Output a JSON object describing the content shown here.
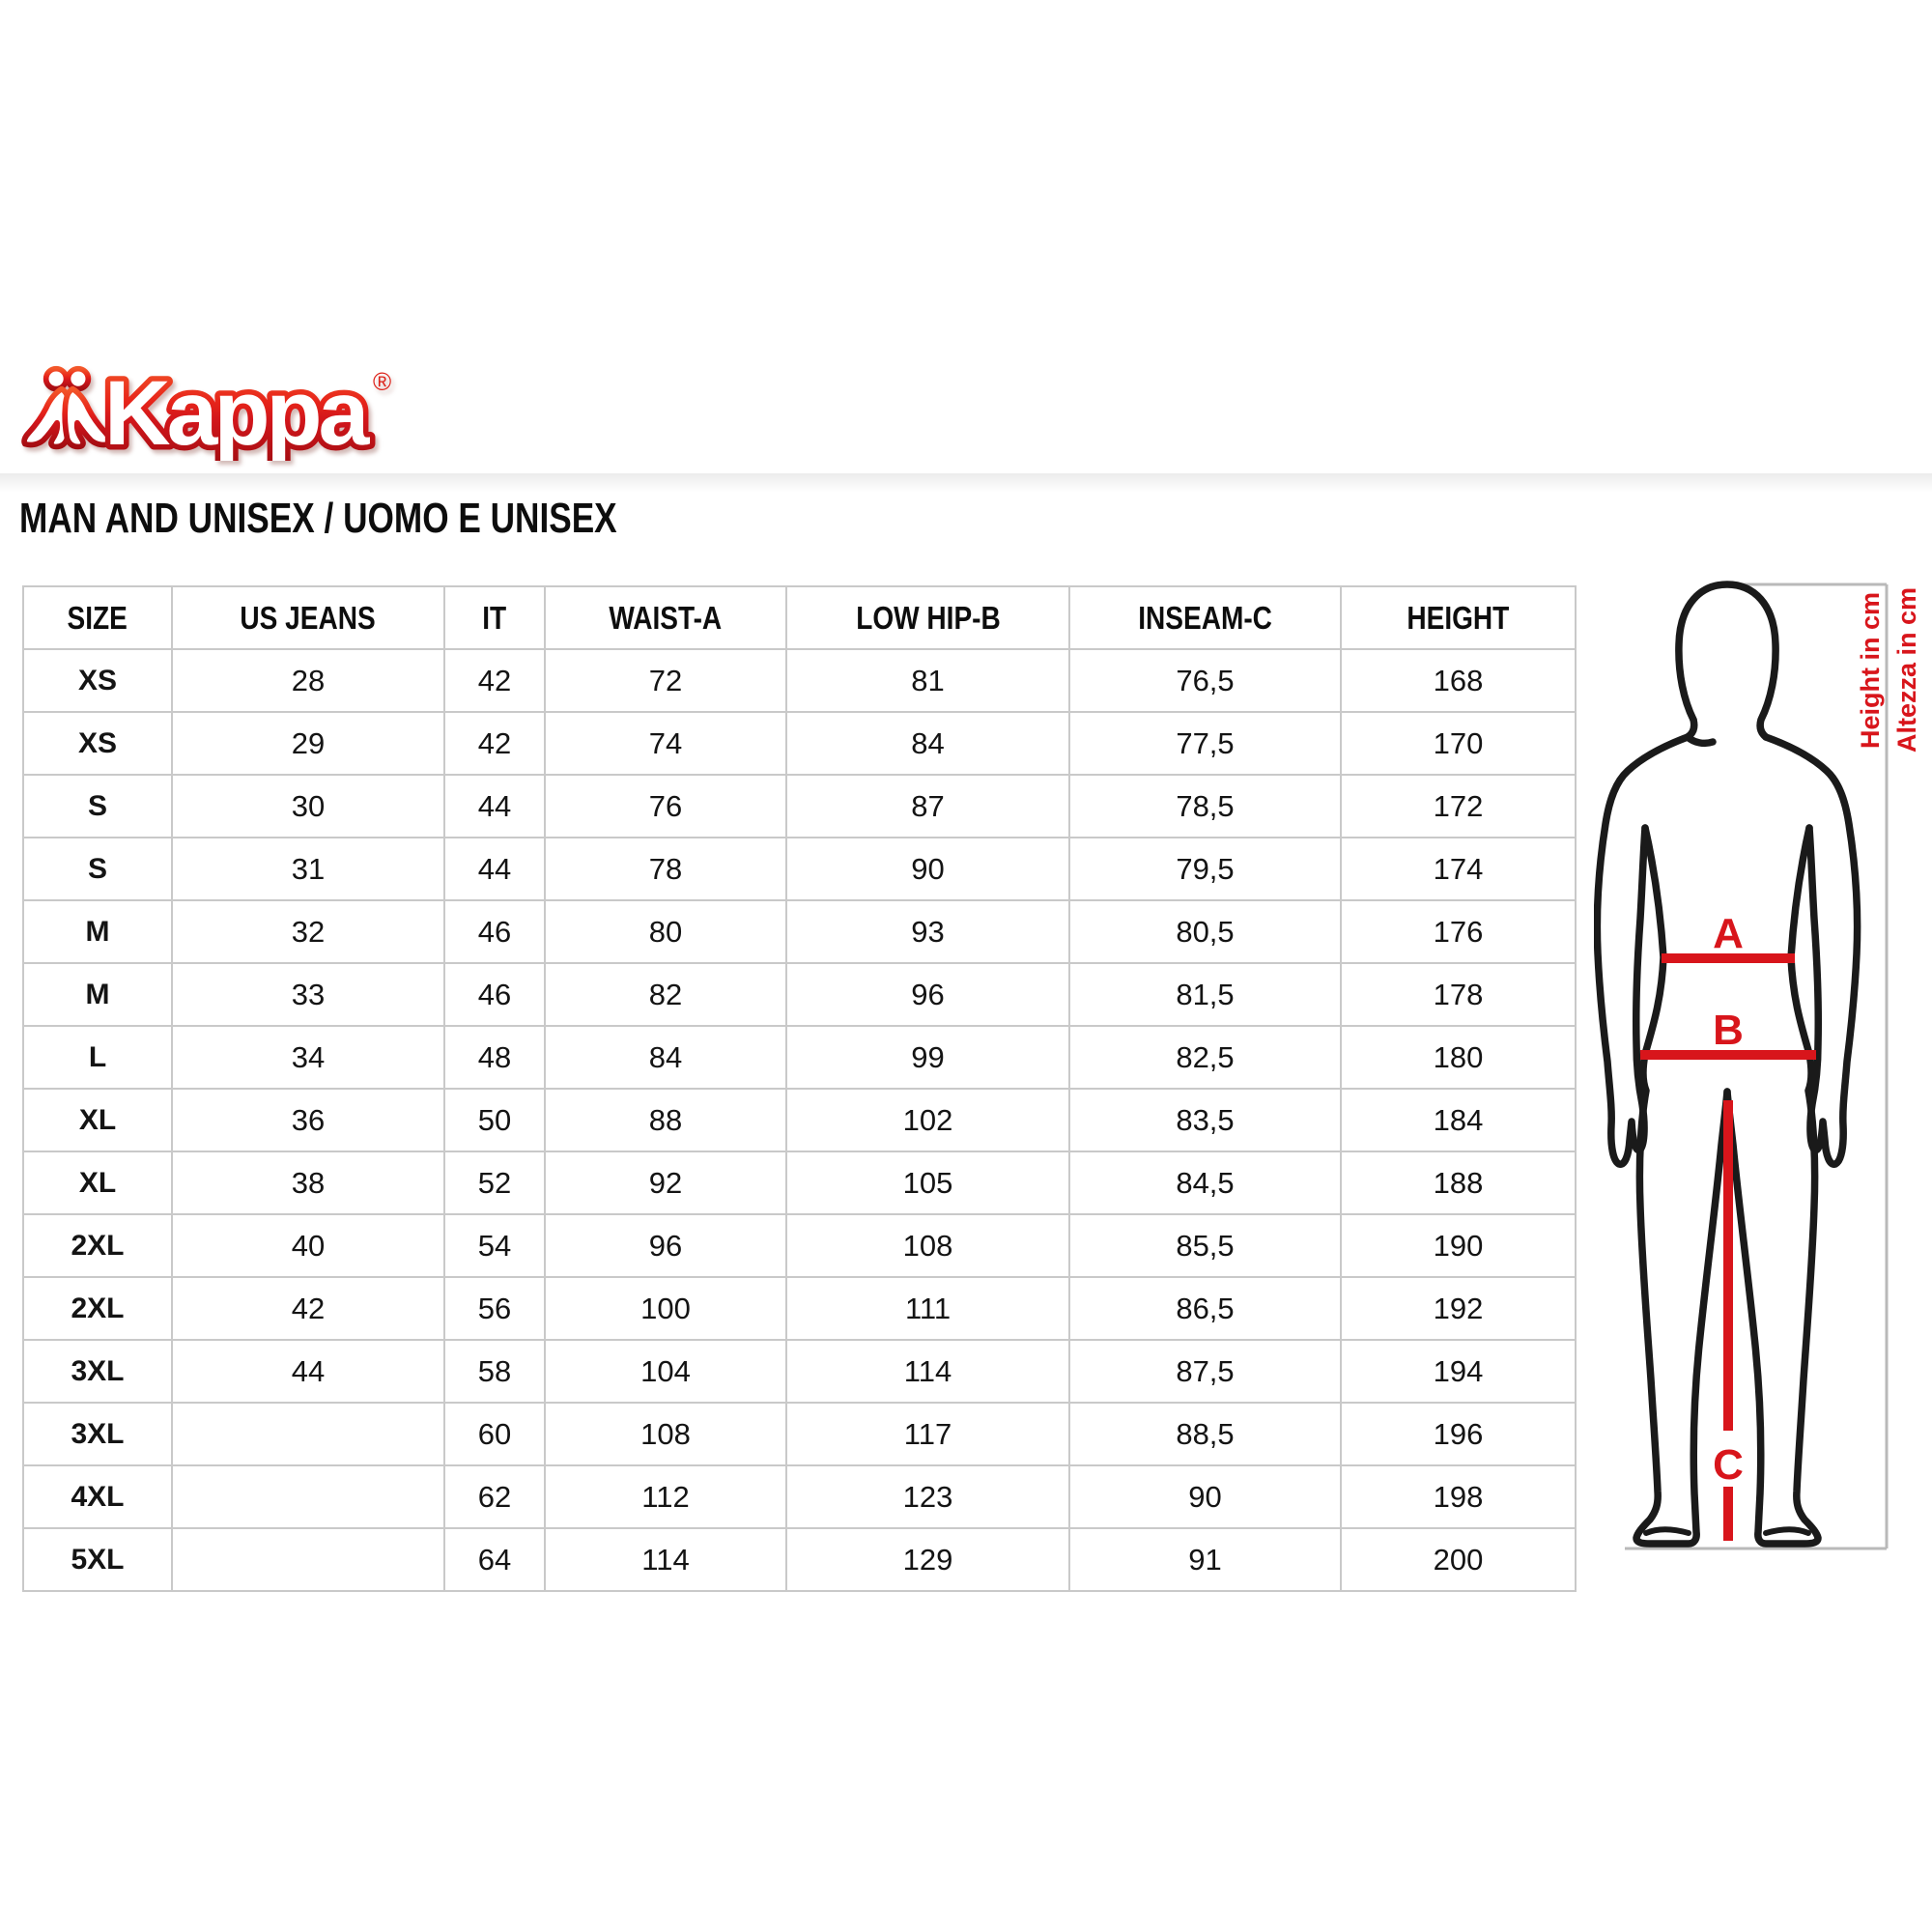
{
  "brand": {
    "name": "Kappa",
    "registered": "®",
    "logo_red": "#e1251b"
  },
  "heading": "MAN AND UNISEX / UOMO E UNISEX",
  "size_table": {
    "columns": [
      "SIZE",
      "US JEANS",
      "IT",
      "WAIST-A",
      "LOW HIP-B",
      "INSEAM-C",
      "HEIGHT"
    ],
    "rows": [
      [
        "XS",
        "28",
        "42",
        "72",
        "81",
        "76,5",
        "168"
      ],
      [
        "XS",
        "29",
        "42",
        "74",
        "84",
        "77,5",
        "170"
      ],
      [
        "S",
        "30",
        "44",
        "76",
        "87",
        "78,5",
        "172"
      ],
      [
        "S",
        "31",
        "44",
        "78",
        "90",
        "79,5",
        "174"
      ],
      [
        "M",
        "32",
        "46",
        "80",
        "93",
        "80,5",
        "176"
      ],
      [
        "M",
        "33",
        "46",
        "82",
        "96",
        "81,5",
        "178"
      ],
      [
        "L",
        "34",
        "48",
        "84",
        "99",
        "82,5",
        "180"
      ],
      [
        "XL",
        "36",
        "50",
        "88",
        "102",
        "83,5",
        "184"
      ],
      [
        "XL",
        "38",
        "52",
        "92",
        "105",
        "84,5",
        "188"
      ],
      [
        "2XL",
        "40",
        "54",
        "96",
        "108",
        "85,5",
        "190"
      ],
      [
        "2XL",
        "42",
        "56",
        "100",
        "111",
        "86,5",
        "192"
      ],
      [
        "3XL",
        "44",
        "58",
        "104",
        "114",
        "87,5",
        "194"
      ],
      [
        "3XL",
        "",
        "60",
        "108",
        "117",
        "88,5",
        "196"
      ],
      [
        "4XL",
        "",
        "62",
        "112",
        "123",
        "90",
        "198"
      ],
      [
        "5XL",
        "",
        "64",
        "114",
        "129",
        "91",
        "200"
      ]
    ]
  },
  "figure": {
    "labels": {
      "waist": "A",
      "low_hip": "B",
      "inseam": "C"
    },
    "height_note_en": "Height in cm",
    "height_note_it": "Altezza in cm",
    "line_color": "#d8151b",
    "bracket_color": "#b9b9b9"
  }
}
